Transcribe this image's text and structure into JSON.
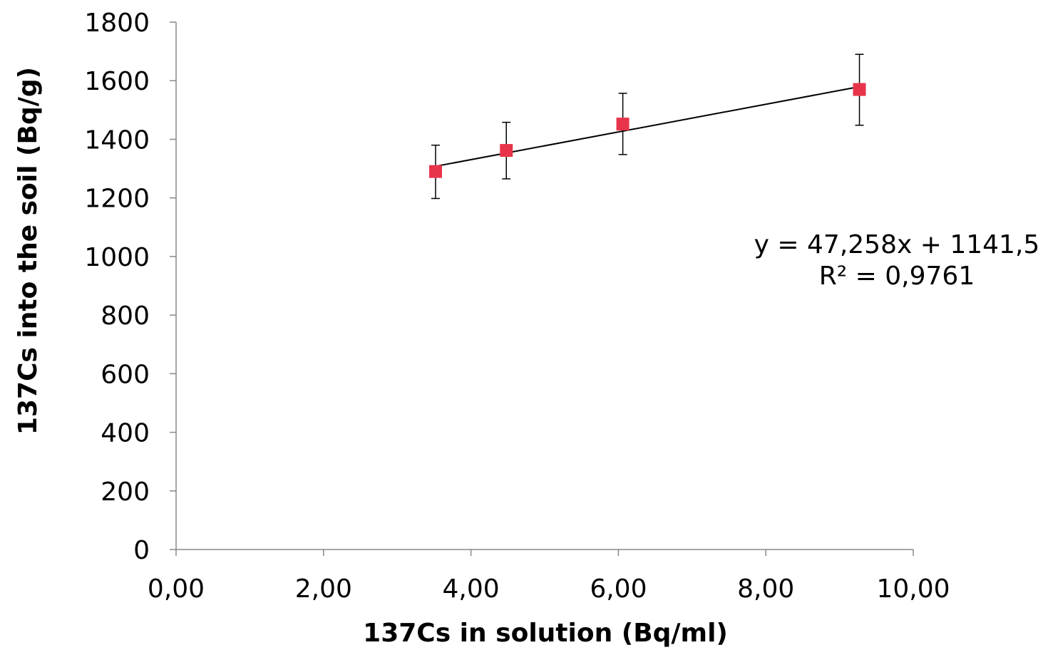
{
  "chart_data": {
    "type": "scatter",
    "title": "",
    "xlabel": "137Cs in solution (Bq/ml)",
    "ylabel": "137Cs into the soil (Bq/g)",
    "xlim": [
      0,
      10
    ],
    "ylim": [
      0,
      1800
    ],
    "x_ticks": [
      "0,00",
      "2,00",
      "4,00",
      "6,00",
      "8,00",
      "10,00"
    ],
    "y_ticks": [
      "0",
      "200",
      "400",
      "600",
      "800",
      "1000",
      "1200",
      "1400",
      "1600",
      "1800"
    ],
    "grid": false,
    "marker": "square",
    "marker_color": "#e8344a",
    "points": [
      {
        "x": 3.52,
        "y": 1290,
        "err_low": 1198,
        "err_high": 1380
      },
      {
        "x": 4.48,
        "y": 1362,
        "err_low": 1265,
        "err_high": 1458
      },
      {
        "x": 6.06,
        "y": 1452,
        "err_low": 1348,
        "err_high": 1557
      },
      {
        "x": 9.27,
        "y": 1570,
        "err_low": 1448,
        "err_high": 1690
      }
    ],
    "trendline": {
      "slope": 47.258,
      "intercept": 1141.5,
      "x_range": [
        3.52,
        9.27
      ]
    },
    "annotations": {
      "equation": "y = 47,258x + 1141,5",
      "r_squared": "R² = 0,9761"
    }
  }
}
